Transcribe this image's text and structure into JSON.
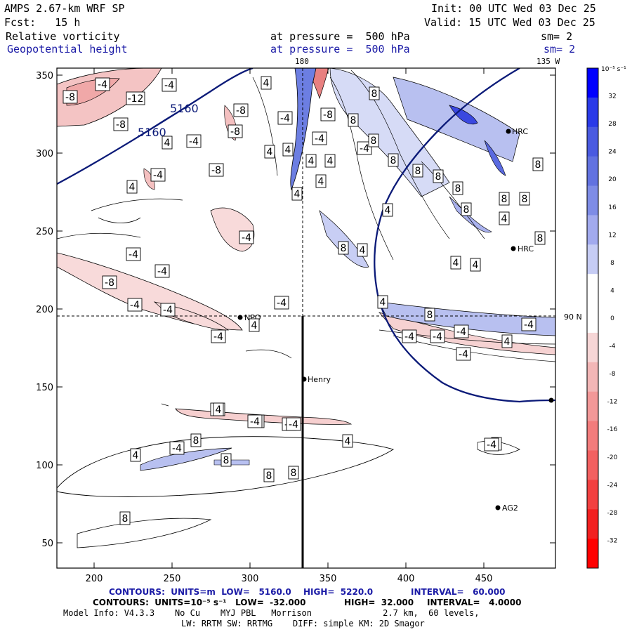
{
  "header": {
    "model": "AMPS 2.67-km WRF SP",
    "init": "Init: 00 UTC Wed 03 Dec 25",
    "fcst": "Fcst:   15 h",
    "valid": "Valid: 15 UTC Wed 03 Dec 25",
    "field1": "Relative vorticity",
    "field1_level": "at pressure =  500 hPa",
    "field1_sm": "sm= 2",
    "field2": "Geopotential height",
    "field2_level": "at pressure =  500 hPa",
    "field2_sm": "sm= 2",
    "lon_top": "180",
    "lon_right_top": "135 W",
    "lat_right": "90 N"
  },
  "axes": {
    "x_ticks": [
      "200",
      "250",
      "300",
      "350",
      "400",
      "450"
    ],
    "y_ticks": [
      "350",
      "300",
      "250",
      "200",
      "150",
      "100",
      "50"
    ]
  },
  "colorbar": {
    "unit": "10⁻⁵ s⁻¹",
    "ticks": [
      "32",
      "28",
      "24",
      "20",
      "16",
      "12",
      "8",
      "4",
      "0",
      "-4",
      "-8",
      "-12",
      "-16",
      "-20",
      "-24",
      "-28",
      "-32"
    ],
    "colors": [
      "#0000ff",
      "#2a3ae8",
      "#4a5ae0",
      "#6272e0",
      "#7e8ce6",
      "#a2aaee",
      "#c6ccf4",
      "#ffffff",
      "#ffffff",
      "#f6d6d6",
      "#f2b6b6",
      "#f29898",
      "#f27c7c",
      "#f26060",
      "#f24040",
      "#f22020",
      "#ff0000"
    ]
  },
  "stations": [
    {
      "name": "Henry"
    },
    {
      "name": "NPO"
    },
    {
      "name": "HRC"
    },
    {
      "name": "HRC"
    },
    {
      "name": "AG2"
    }
  ],
  "height_labels": [
    "5160",
    "5160"
  ],
  "vort_labels": [
    "-8",
    "-4",
    "-12",
    "-4",
    "-8",
    "-4",
    "-8",
    "-8",
    "-4",
    "-8",
    "-4",
    "-4",
    "-8",
    "-4",
    "-4",
    "-4",
    "-8",
    "-4",
    "-4",
    "-4",
    "-4",
    "-4",
    "-4",
    "-4",
    "-4",
    "4",
    "4",
    "4",
    "4",
    "4",
    "4",
    "4",
    "4",
    "4",
    "4",
    "4",
    "4",
    "8",
    "8",
    "8",
    "8",
    "8",
    "8",
    "8",
    "8",
    "8",
    "8",
    "8",
    "8",
    "8",
    "8",
    "8",
    "8",
    "8",
    "8",
    "-4",
    "-4",
    "-4",
    "-4",
    "-4",
    "-4",
    "4",
    "4",
    "4",
    "4",
    "4",
    "4",
    "4",
    "4",
    "8",
    "8",
    "-4",
    "-4",
    "-4"
  ],
  "footer": {
    "line1_a": "CONTOURS:  UNITS=m  LOW=   5160.0",
    "line1_b": "HIGH=  5220.0",
    "line1_c": "INTERVAL=   60.000",
    "line2_a": "CONTOURS:  UNITS=10⁻⁵ s⁻¹   LOW=  -32.000",
    "line2_b": "HIGH=  32.000",
    "line2_c": "INTERVAL=   4.0000",
    "line3": "Model Info: V4.3.3    No Cu    MYJ PBL   Morrison              2.7 km,  60 levels,",
    "line4": "LW: RRTM SW: RRTMG    DIFF: simple KM: 2D Smagor"
  }
}
